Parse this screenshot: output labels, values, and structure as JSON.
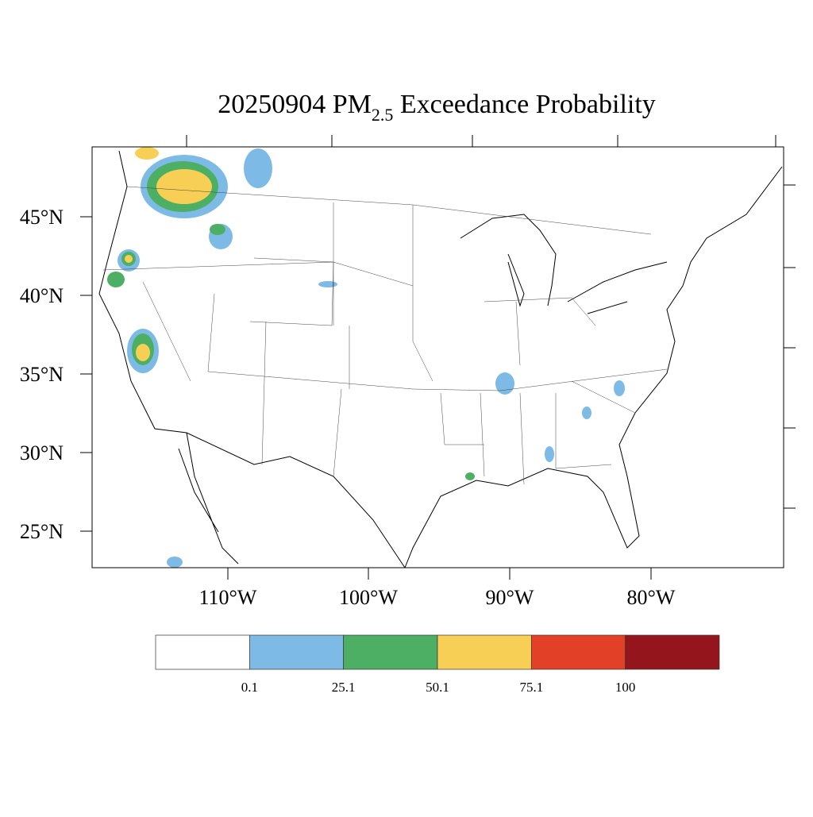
{
  "title": {
    "main": "20250904 PM",
    "subscript": "2.5",
    "rest": "Exceedance Probability"
  },
  "lat_labels": [
    "45°N",
    "40°N",
    "35°N",
    "30°N",
    "25°N"
  ],
  "lon_labels": [
    "110°W",
    "100°W",
    "90°W",
    "80°W"
  ],
  "colorbar": {
    "colors": [
      "#ffffff",
      "#7dbbe6",
      "#4caf64",
      "#f8cf55",
      "#e34028",
      "#94161c"
    ],
    "labels": [
      "0.1",
      "25.1",
      "50.1",
      "75.1",
      "100"
    ]
  }
}
